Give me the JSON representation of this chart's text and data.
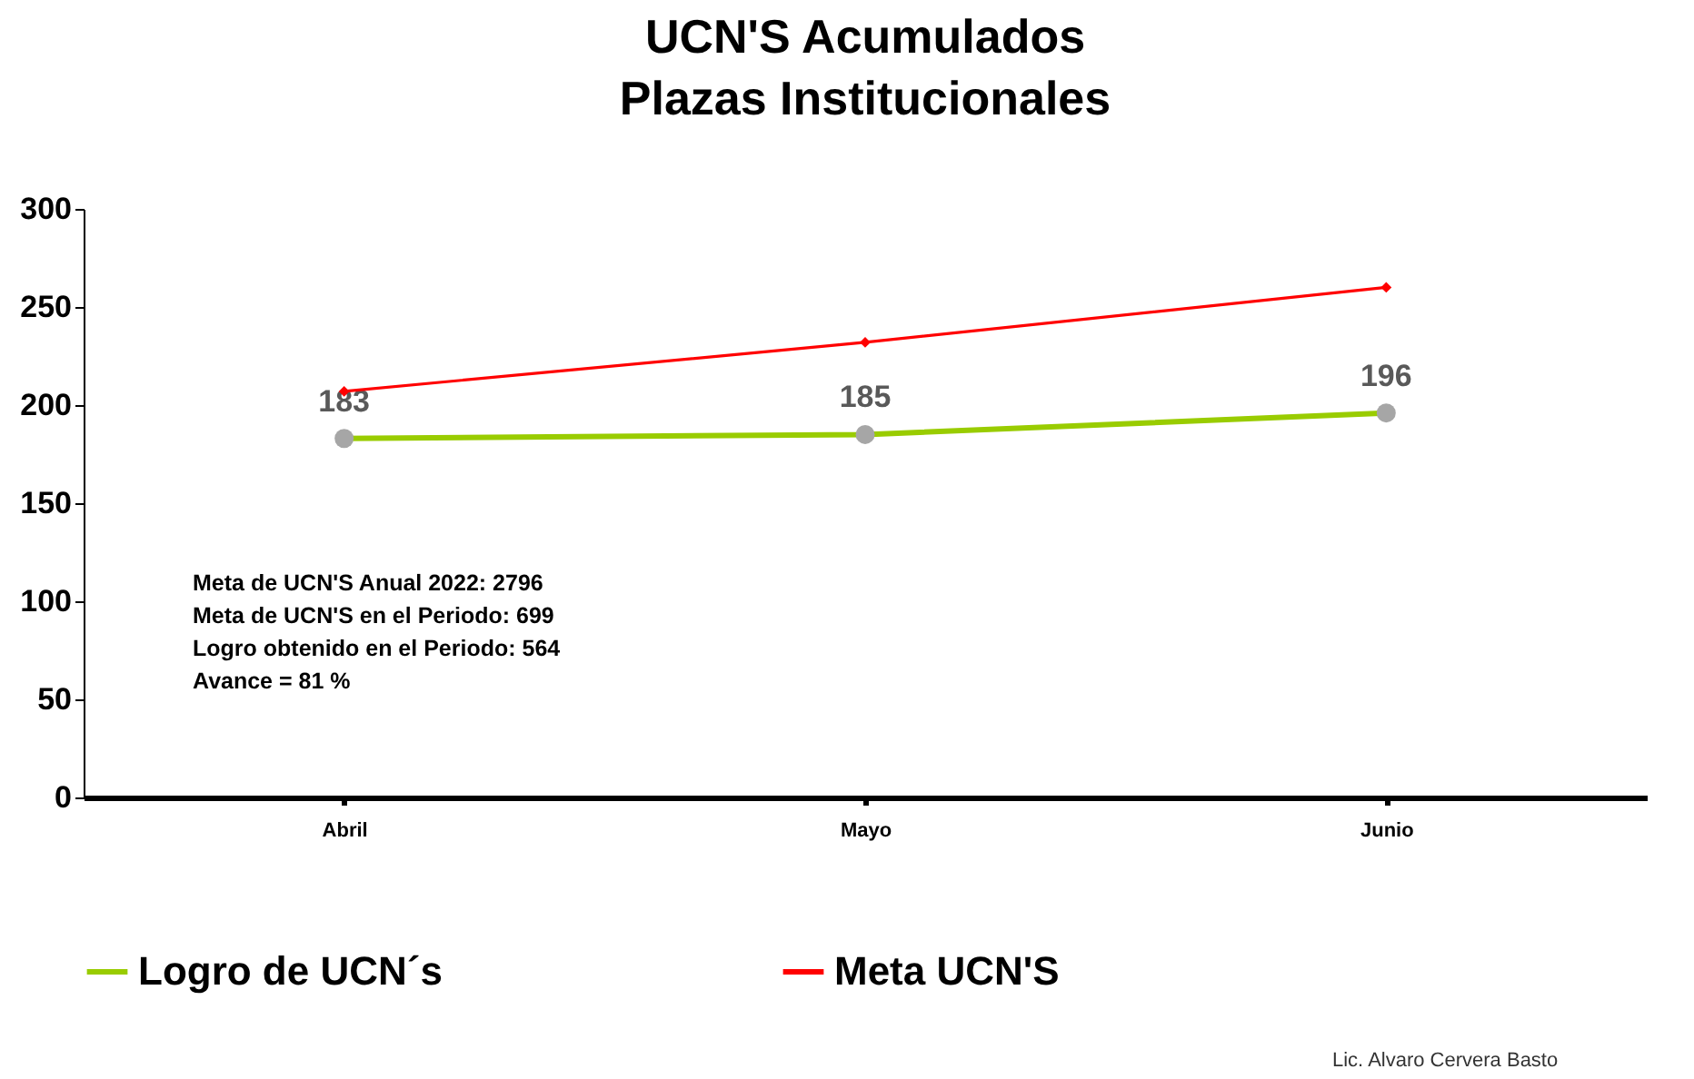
{
  "chart_data": {
    "type": "line",
    "title": "UCN'S Acumulados",
    "subtitle": "Plazas Institucionales",
    "categories": [
      "Abril",
      "Mayo",
      "Junio"
    ],
    "series": [
      {
        "name": "Logro de UCN´s",
        "color": "#99cc00",
        "values": [
          183,
          185,
          196
        ],
        "marker": "circle",
        "value_labels": [
          "183",
          "185",
          "196"
        ]
      },
      {
        "name": "Meta UCN'S",
        "color": "#ff0000",
        "values": [
          207,
          232,
          260
        ],
        "marker": "diamond"
      }
    ],
    "ylim": [
      0,
      300
    ],
    "yticks": [
      0,
      50,
      100,
      150,
      200,
      250,
      300
    ],
    "grid": false,
    "legend": "bottom",
    "annotations": [
      "Meta de UCN'S Anual 2022: 2796",
      "Meta de UCN'S en el Periodo: 699",
      "Logro obtenido en el Periodo: 564",
      "Avance = 81 %",
      "Lic. Alvaro Cervera Basto"
    ]
  }
}
